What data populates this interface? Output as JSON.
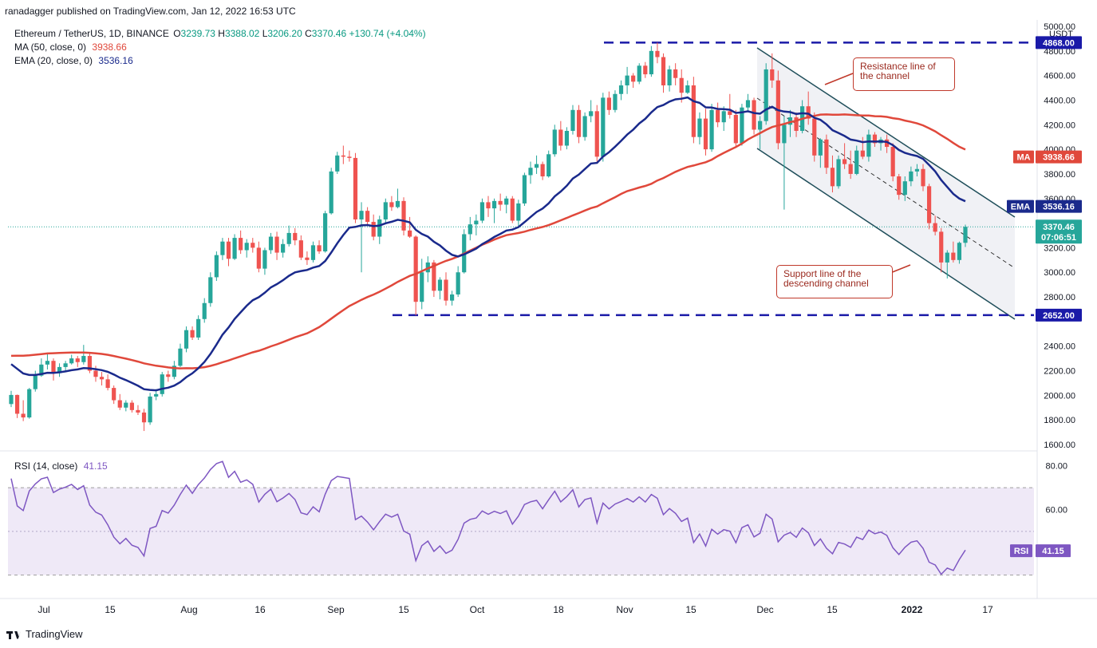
{
  "publisher_line": "ranadagger published on TradingView.com, Jan 12, 2022 16:53 UTC",
  "symbol_line": {
    "name": "Ethereum / TetherUS, 1D, BINANCE",
    "o_label": "O",
    "o_value": "3239.73",
    "h_label": "H",
    "h_value": "3388.02",
    "l_label": "L",
    "l_value": "3206.20",
    "c_label": "C",
    "c_value": "3370.46",
    "change": "+130.74 (+4.04%)"
  },
  "indicators": [
    {
      "label": "MA (50, close, 0)",
      "value": "3938.66",
      "color": "#e0483b"
    },
    {
      "label": "EMA (20, close, 0)",
      "value": "3536.16",
      "color": "#1a2a8c"
    }
  ],
  "rsi_legend": {
    "label": "RSI (14, close)",
    "value": "41.15"
  },
  "currency": "USDT",
  "annotations": {
    "resistance": "Resistance line of\nthe channel",
    "support": "Support line of the\ndescending channel"
  },
  "price_tags": {
    "ma_label": "MA",
    "ma_value": "3938.66",
    "ema_label": "EMA",
    "ema_value": "3536.16",
    "last_value": "3370.46",
    "countdown": "07:06:51",
    "level_high": "4868.00",
    "level_low": "2652.00",
    "rsi_label": "RSI",
    "rsi_value": "41.15"
  },
  "footer": "TradingView",
  "colors": {
    "up": "#26a69a",
    "down": "#ef5350",
    "ma": "#e0483b",
    "ema": "#1a2a8c",
    "rsi": "#7e57c2",
    "level": "#1a1aa8",
    "channel": "#1f4e5a"
  },
  "chart_data": {
    "type": "candlestick",
    "price_axis": {
      "min": 1600,
      "max": 5000,
      "ticks": [
        1600,
        1800,
        2000,
        2200,
        2400,
        2600,
        2800,
        3000,
        3200,
        3400,
        3600,
        3800,
        4000,
        4200,
        4400,
        4600,
        4800,
        5000
      ],
      "tick_labels": [
        "1600.00",
        "1800.00",
        "2000.00",
        "2200.00",
        "2400.00",
        "",
        "2800.00",
        "3000.00",
        "3200.00",
        "",
        "3600.00",
        "3800.00",
        "4000.00",
        "4200.00",
        "4400.00",
        "4600.00",
        "4800.00",
        "5000.00"
      ]
    },
    "rsi_axis": {
      "min": 20,
      "max": 85,
      "ticks": [
        60,
        80
      ],
      "tick_labels": [
        "60.00",
        "80.00"
      ],
      "band": [
        30,
        70
      ]
    },
    "x_axis_labels": [
      "Jul",
      "15",
      "Aug",
      "16",
      "Sep",
      "15",
      "Oct",
      "18",
      "Nov",
      "15",
      "Dec",
      "15",
      "2022",
      "17"
    ],
    "horizontal_levels": [
      4868,
      2652
    ],
    "candles": [
      [
        1929,
        2036,
        1904,
        2003
      ],
      [
        2003,
        2006,
        1815,
        1850
      ],
      [
        1850,
        1960,
        1790,
        1820
      ],
      [
        1820,
        2060,
        1810,
        2050
      ],
      [
        2050,
        2200,
        2030,
        2160
      ],
      [
        2160,
        2300,
        2150,
        2250
      ],
      [
        2250,
        2340,
        2210,
        2280
      ],
      [
        2280,
        2300,
        2120,
        2180
      ],
      [
        2180,
        2260,
        2150,
        2230
      ],
      [
        2230,
        2280,
        2190,
        2260
      ],
      [
        2260,
        2330,
        2250,
        2300
      ],
      [
        2300,
        2320,
        2230,
        2270
      ],
      [
        2270,
        2410,
        2250,
        2320
      ],
      [
        2320,
        2350,
        2180,
        2200
      ],
      [
        2200,
        2240,
        2110,
        2150
      ],
      [
        2150,
        2190,
        2080,
        2130
      ],
      [
        2130,
        2170,
        2040,
        2060
      ],
      [
        2060,
        2080,
        1930,
        1960
      ],
      [
        1960,
        2010,
        1880,
        1900
      ],
      [
        1900,
        1960,
        1870,
        1940
      ],
      [
        1940,
        1960,
        1860,
        1880
      ],
      [
        1880,
        1920,
        1840,
        1860
      ],
      [
        1860,
        1890,
        1710,
        1780
      ],
      [
        1780,
        2020,
        1760,
        1990
      ],
      [
        1990,
        2050,
        1960,
        2010
      ],
      [
        2010,
        2190,
        1990,
        2170
      ],
      [
        2170,
        2200,
        2110,
        2150
      ],
      [
        2150,
        2280,
        2130,
        2240
      ],
      [
        2240,
        2420,
        2230,
        2380
      ],
      [
        2380,
        2560,
        2350,
        2530
      ],
      [
        2530,
        2560,
        2450,
        2470
      ],
      [
        2470,
        2650,
        2450,
        2620
      ],
      [
        2620,
        2790,
        2590,
        2750
      ],
      [
        2750,
        3000,
        2720,
        2960
      ],
      [
        2960,
        3170,
        2930,
        3140
      ],
      [
        3140,
        3280,
        3100,
        3250
      ],
      [
        3250,
        3280,
        3050,
        3110
      ],
      [
        3110,
        3310,
        3100,
        3280
      ],
      [
        3280,
        3340,
        3150,
        3180
      ],
      [
        3180,
        3270,
        3120,
        3240
      ],
      [
        3240,
        3280,
        3160,
        3200
      ],
      [
        3200,
        3250,
        3000,
        3030
      ],
      [
        3030,
        3200,
        2980,
        3180
      ],
      [
        3180,
        3320,
        3150,
        3290
      ],
      [
        3290,
        3330,
        3100,
        3160
      ],
      [
        3160,
        3270,
        3120,
        3230
      ],
      [
        3230,
        3380,
        3210,
        3320
      ],
      [
        3320,
        3360,
        3220,
        3260
      ],
      [
        3260,
        3300,
        3100,
        3120
      ],
      [
        3120,
        3170,
        3060,
        3100
      ],
      [
        3100,
        3250,
        3080,
        3220
      ],
      [
        3220,
        3260,
        3150,
        3170
      ],
      [
        3170,
        3500,
        3160,
        3480
      ],
      [
        3480,
        3850,
        3470,
        3820
      ],
      [
        3820,
        3980,
        3800,
        3950
      ],
      [
        3950,
        4030,
        3880,
        3940
      ],
      [
        3940,
        3990,
        3900,
        3930
      ],
      [
        3930,
        3970,
        3400,
        3430
      ],
      [
        3430,
        3570,
        3000,
        3500
      ],
      [
        3500,
        3530,
        3380,
        3410
      ],
      [
        3410,
        3470,
        3260,
        3290
      ],
      [
        3290,
        3460,
        3230,
        3430
      ],
      [
        3430,
        3600,
        3390,
        3570
      ],
      [
        3570,
        3620,
        3500,
        3530
      ],
      [
        3530,
        3680,
        3520,
        3580
      ],
      [
        3580,
        3610,
        3300,
        3340
      ],
      [
        3340,
        3450,
        3280,
        3290
      ],
      [
        3290,
        3300,
        2650,
        2760
      ],
      [
        2760,
        3110,
        2700,
        3000
      ],
      [
        3000,
        3130,
        2920,
        3080
      ],
      [
        3080,
        3100,
        2800,
        2850
      ],
      [
        2850,
        2960,
        2780,
        2940
      ],
      [
        2940,
        3000,
        2730,
        2770
      ],
      [
        2770,
        2850,
        2730,
        2820
      ],
      [
        2820,
        3050,
        2800,
        3000
      ],
      [
        3000,
        3350,
        2990,
        3310
      ],
      [
        3310,
        3450,
        3260,
        3390
      ],
      [
        3390,
        3470,
        3300,
        3420
      ],
      [
        3420,
        3600,
        3400,
        3570
      ],
      [
        3570,
        3620,
        3450,
        3520
      ],
      [
        3520,
        3600,
        3400,
        3580
      ],
      [
        3580,
        3640,
        3500,
        3550
      ],
      [
        3550,
        3620,
        3480,
        3600
      ],
      [
        3600,
        3620,
        3400,
        3420
      ],
      [
        3420,
        3590,
        3360,
        3560
      ],
      [
        3560,
        3810,
        3540,
        3790
      ],
      [
        3790,
        3900,
        3720,
        3850
      ],
      [
        3850,
        3950,
        3800,
        3880
      ],
      [
        3880,
        3900,
        3750,
        3780
      ],
      [
        3780,
        3990,
        3770,
        3960
      ],
      [
        3960,
        4200,
        3940,
        4160
      ],
      [
        4160,
        4230,
        3990,
        4030
      ],
      [
        4030,
        4180,
        4000,
        4150
      ],
      [
        4150,
        4360,
        4120,
        4320
      ],
      [
        4320,
        4360,
        4050,
        4100
      ],
      [
        4100,
        4300,
        4070,
        4270
      ],
      [
        4270,
        4400,
        4220,
        4310
      ],
      [
        4310,
        4360,
        3900,
        3940
      ],
      [
        3940,
        4460,
        3900,
        4420
      ],
      [
        4420,
        4470,
        4280,
        4320
      ],
      [
        4320,
        4480,
        4300,
        4450
      ],
      [
        4450,
        4560,
        4400,
        4520
      ],
      [
        4520,
        4670,
        4450,
        4600
      ],
      [
        4600,
        4620,
        4500,
        4550
      ],
      [
        4550,
        4700,
        4530,
        4680
      ],
      [
        4680,
        4710,
        4580,
        4610
      ],
      [
        4610,
        4840,
        4590,
        4800
      ],
      [
        4800,
        4868,
        4700,
        4750
      ],
      [
        4750,
        4780,
        4460,
        4520
      ],
      [
        4520,
        4680,
        4470,
        4650
      ],
      [
        4650,
        4700,
        4520,
        4580
      ],
      [
        4580,
        4650,
        4380,
        4460
      ],
      [
        4460,
        4560,
        4450,
        4520
      ],
      [
        4520,
        4590,
        4050,
        4100
      ],
      [
        4100,
        4300,
        4040,
        4250
      ],
      [
        4250,
        4330,
        3950,
        4000
      ],
      [
        4000,
        4370,
        3980,
        4320
      ],
      [
        4320,
        4380,
        4180,
        4220
      ],
      [
        4220,
        4350,
        4150,
        4310
      ],
      [
        4310,
        4450,
        4250,
        4280
      ],
      [
        4280,
        4320,
        4010,
        4050
      ],
      [
        4050,
        4370,
        4030,
        4340
      ],
      [
        4340,
        4450,
        4300,
        4400
      ],
      [
        4400,
        4420,
        4120,
        4160
      ],
      [
        4160,
        4270,
        4000,
        4230
      ],
      [
        4230,
        4700,
        4200,
        4650
      ],
      [
        4650,
        4780,
        4500,
        4560
      ],
      [
        4560,
        4640,
        4000,
        4050
      ],
      [
        4050,
        4270,
        3510,
        4200
      ],
      [
        4200,
        4320,
        4100,
        4260
      ],
      [
        4260,
        4300,
        4100,
        4150
      ],
      [
        4150,
        4400,
        4130,
        4350
      ],
      [
        4350,
        4470,
        4200,
        4250
      ],
      [
        4250,
        4300,
        3900,
        3950
      ],
      [
        3950,
        4090,
        3850,
        4080
      ],
      [
        4080,
        4120,
        3800,
        3850
      ],
      [
        3850,
        3950,
        3650,
        3700
      ],
      [
        3700,
        3950,
        3680,
        3920
      ],
      [
        3920,
        4050,
        3840,
        3880
      ],
      [
        3880,
        3990,
        3760,
        3800
      ],
      [
        3800,
        4030,
        3790,
        3990
      ],
      [
        3990,
        4100,
        3920,
        3940
      ],
      [
        3940,
        4160,
        3900,
        4120
      ],
      [
        4120,
        4140,
        4020,
        4050
      ],
      [
        4050,
        4100,
        3990,
        4080
      ],
      [
        4080,
        4120,
        3970,
        4020
      ],
      [
        4020,
        4050,
        3740,
        3780
      ],
      [
        3780,
        3800,
        3590,
        3630
      ],
      [
        3630,
        3780,
        3580,
        3740
      ],
      [
        3740,
        3860,
        3700,
        3820
      ],
      [
        3820,
        3880,
        3780,
        3840
      ],
      [
        3840,
        3880,
        3660,
        3700
      ],
      [
        3700,
        3720,
        3350,
        3400
      ],
      [
        3400,
        3460,
        3300,
        3330
      ],
      [
        3330,
        3360,
        3000,
        3080
      ],
      [
        3080,
        3180,
        2950,
        3160
      ],
      [
        3160,
        3250,
        3080,
        3100
      ],
      [
        3100,
        3250,
        3070,
        3240
      ],
      [
        3240,
        3388,
        3206,
        3370
      ]
    ],
    "series": [
      {
        "name": "MA (50, close, 0)",
        "values_note": "moving average",
        "end_value": 3938.66
      },
      {
        "name": "EMA (20, close, 0)",
        "end_value": 3536.16
      },
      {
        "name": "RSI (14, close)",
        "end_value": 41.15
      }
    ]
  }
}
